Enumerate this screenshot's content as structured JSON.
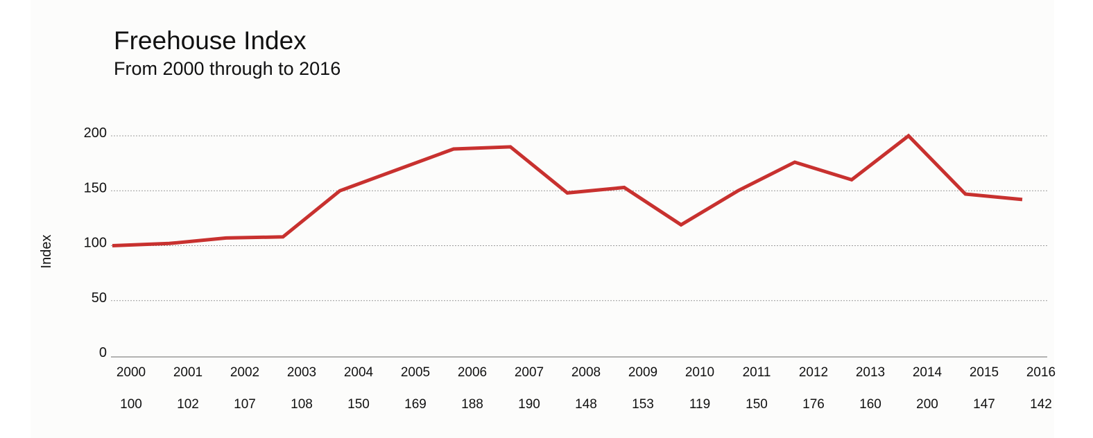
{
  "chart_data": {
    "type": "line",
    "title": "Freehouse Index",
    "subtitle": "From 2000 through to 2016",
    "ylabel": "Index",
    "xlabel": "",
    "ylim": [
      0,
      200
    ],
    "yticks": [
      0,
      50,
      100,
      150,
      200
    ],
    "grid": true,
    "line_color": "#c8312f",
    "categories": [
      "2000",
      "2001",
      "2002",
      "2003",
      "2004",
      "2005",
      "2006",
      "2007",
      "2008",
      "2009",
      "2010",
      "2011",
      "2012",
      "2013",
      "2014",
      "2015",
      "2016"
    ],
    "values": [
      100,
      102,
      107,
      108,
      150,
      169,
      188,
      190,
      148,
      153,
      119,
      150,
      176,
      160,
      200,
      147,
      142
    ],
    "value_labels": [
      "100",
      "102",
      "107",
      "108",
      "150",
      "169",
      "188",
      "190",
      "148",
      "153",
      "119",
      "150",
      "176",
      "160",
      "200",
      "147",
      "142"
    ]
  }
}
